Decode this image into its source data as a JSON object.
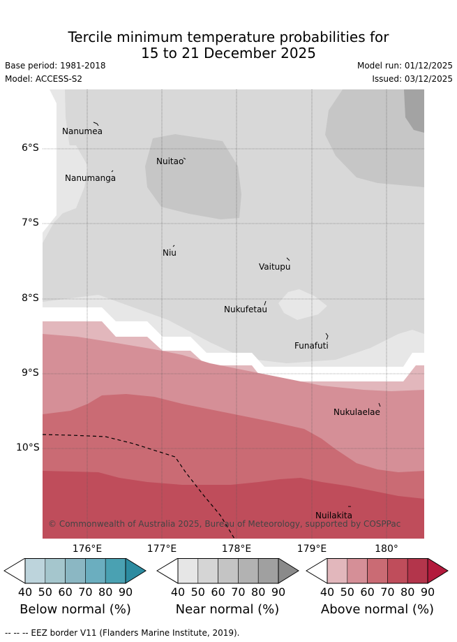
{
  "title": {
    "line1": "Tercile minimum temperature probabilities for",
    "line2": "15 to 21 December 2025"
  },
  "meta": {
    "base_period": "Base period: 1981-2018",
    "model": "Model: ACCESS-S2",
    "model_run": "Model run: 01/12/2025",
    "issued": "Issued: 03/12/2025"
  },
  "axes": {
    "lat_labels": [
      "6°S",
      "7°S",
      "8°S",
      "9°S",
      "10°S"
    ],
    "lon_labels": [
      "176°E",
      "177°E",
      "178°E",
      "179°E",
      "180°"
    ]
  },
  "places": [
    {
      "name": "Nanumea"
    },
    {
      "name": "Nuitao"
    },
    {
      "name": "Nanumanga"
    },
    {
      "name": "Niu"
    },
    {
      "name": "Vaitupu"
    },
    {
      "name": "Nukufetau"
    },
    {
      "name": "Funafuti"
    },
    {
      "name": "Nukulaelae"
    },
    {
      "name": "Nuilakita"
    }
  ],
  "copyright": "© Commonwealth of Australia 2025, Bureau of Meteorology, supported by COSPPac",
  "legend": {
    "below": {
      "title": "Below normal (%)",
      "ticks": [
        "40",
        "50",
        "60",
        "70",
        "80",
        "90"
      ],
      "colors": [
        "#bdd4dc",
        "#a5c6cd",
        "#8bb7c3",
        "#6baebf",
        "#4aa1b2",
        "#2c8ba0"
      ]
    },
    "near": {
      "title": "Near normal (%)",
      "ticks": [
        "40",
        "50",
        "60",
        "70",
        "80",
        "90"
      ],
      "colors": [
        "#e6e6e6",
        "#d5d5d5",
        "#c4c4c4",
        "#b2b2b2",
        "#a0a0a0",
        "#8a8a8a"
      ]
    },
    "above": {
      "title": "Above normal (%)",
      "ticks": [
        "40",
        "50",
        "60",
        "70",
        "80",
        "90"
      ],
      "colors": [
        "#e2b7bc",
        "#d58f97",
        "#ca6b74",
        "#bf4d5b",
        "#b3354b",
        "#b31a3c"
      ]
    }
  },
  "footer": "--  --  -- EEZ border V11 (Flanders Marine Institute, 2019)."
}
